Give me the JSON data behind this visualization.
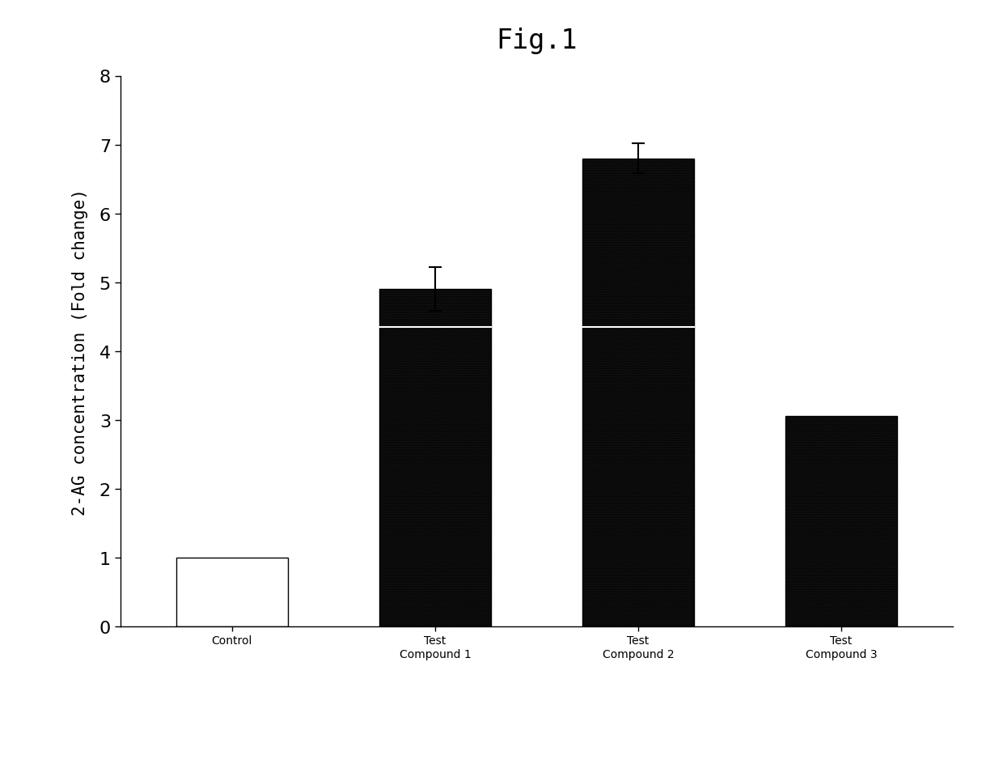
{
  "title": "Fig.1",
  "ylabel": "2-AG concentration (Fold change)",
  "categories": [
    "Control",
    "Test\nCompound 1",
    "Test\nCompound 2",
    "Test\nCompound 3"
  ],
  "values": [
    1.0,
    4.9,
    6.8,
    3.05
  ],
  "errors": [
    0.0,
    0.32,
    0.22,
    0.0
  ],
  "ylim": [
    0,
    8
  ],
  "yticks": [
    0,
    1,
    2,
    3,
    4,
    5,
    6,
    7,
    8
  ],
  "background_color": "#ffffff",
  "figure_bg": "#ffffff",
  "title_fontsize": 24,
  "axis_fontsize": 15,
  "tick_fontsize": 16,
  "bar_width": 0.55,
  "median_lines": [
    false,
    true,
    true,
    false
  ],
  "median_values": [
    0,
    4.35,
    4.35,
    0
  ],
  "x_positions": [
    0,
    1,
    2,
    3
  ],
  "xlim": [
    -0.55,
    3.55
  ]
}
